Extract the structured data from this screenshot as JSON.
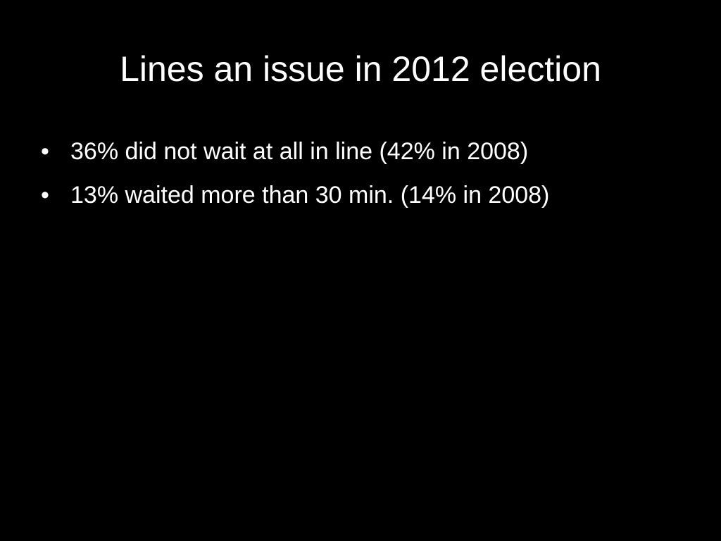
{
  "slide": {
    "title": "Lines an issue in 2012 election",
    "bullet_marker": "•",
    "bullets": [
      {
        "text": "36% did not wait at all in line (42% in 2008)"
      },
      {
        "text": "13% waited more than 30 min. (14% in 2008)"
      }
    ]
  },
  "colors": {
    "background": "#000000",
    "text": "#ffffff"
  }
}
